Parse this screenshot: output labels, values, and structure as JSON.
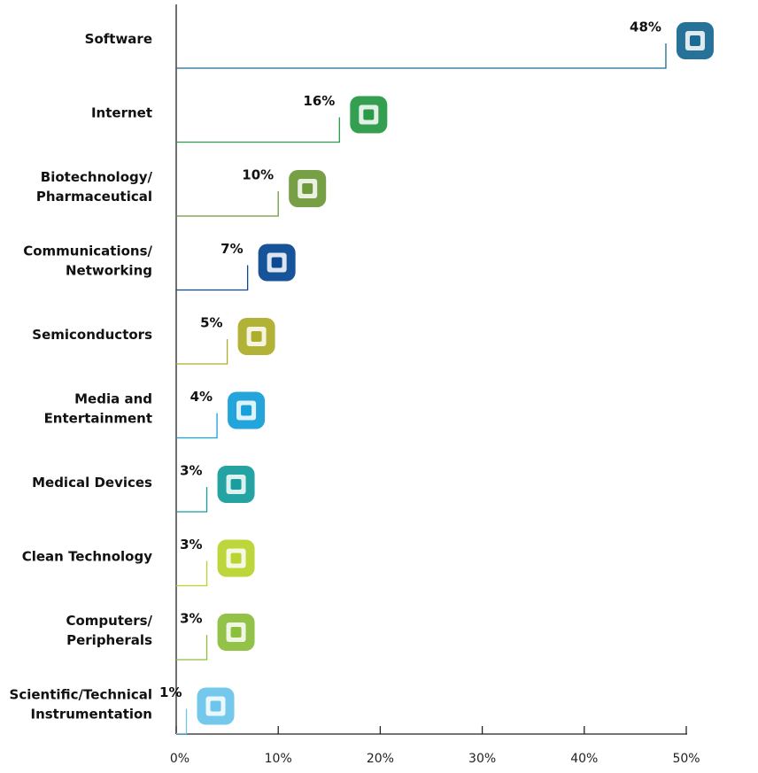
{
  "chart_data": {
    "type": "bar",
    "categories": [
      "Software",
      "Internet",
      "Biotechnology/\nPharmaceutical",
      "Communications/\nNetworking",
      "Semiconductors",
      "Media and\nEntertainment",
      "Medical Devices",
      "Clean Technology",
      "Computers/\nPeripherals",
      "Scientific/Technical\nInstrumentation"
    ],
    "values": [
      48,
      16,
      10,
      7,
      5,
      4,
      3,
      3,
      3,
      1
    ],
    "value_labels": [
      "48%",
      "16%",
      "10%",
      "7%",
      "5%",
      "4%",
      "3%",
      "3%",
      "3%",
      "1%"
    ],
    "colors": [
      "#1b6a94",
      "#2a9a48",
      "#6f9a3c",
      "#0b4a92",
      "#aeae2c",
      "#17a0da",
      "#199e9e",
      "#b9d431",
      "#8dbf3f",
      "#6cc5ea"
    ],
    "xlim": [
      0,
      50
    ],
    "xticks": [
      {
        "value": 0,
        "label": "0%"
      },
      {
        "value": 10,
        "label": "10%"
      },
      {
        "value": 20,
        "label": "20%"
      },
      {
        "value": 30,
        "label": "30%"
      },
      {
        "value": 40,
        "label": "40%"
      },
      {
        "value": 50,
        "label": "50%"
      }
    ]
  }
}
